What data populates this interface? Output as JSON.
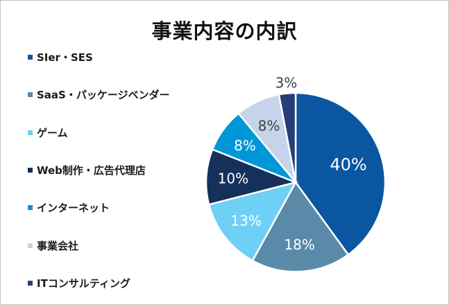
{
  "chart_data": {
    "type": "pie",
    "title": "事業内容の内訳",
    "categories": [
      "SIer・SES",
      "SaaS・パッケージベンダー",
      "ゲーム",
      "Web制作・広告代理店",
      "インターネット",
      "事業会社",
      "ITコンサルティング"
    ],
    "values": [
      40,
      18,
      13,
      10,
      8,
      8,
      3
    ],
    "labels": [
      "40%",
      "18%",
      "13%",
      "10%",
      "8%",
      "8%",
      "3%"
    ],
    "colors": [
      "#0a56a0",
      "#5b8aa8",
      "#6fd0f5",
      "#16305c",
      "#0097d8",
      "#c5d4ea",
      "#273f78"
    ],
    "label_colors": [
      "#ffffff",
      "#ffffff",
      "#ffffff",
      "#ffffff",
      "#ffffff",
      "#404040",
      "#404040"
    ],
    "start": "top",
    "direction": "clockwise",
    "legend_position": "left"
  }
}
